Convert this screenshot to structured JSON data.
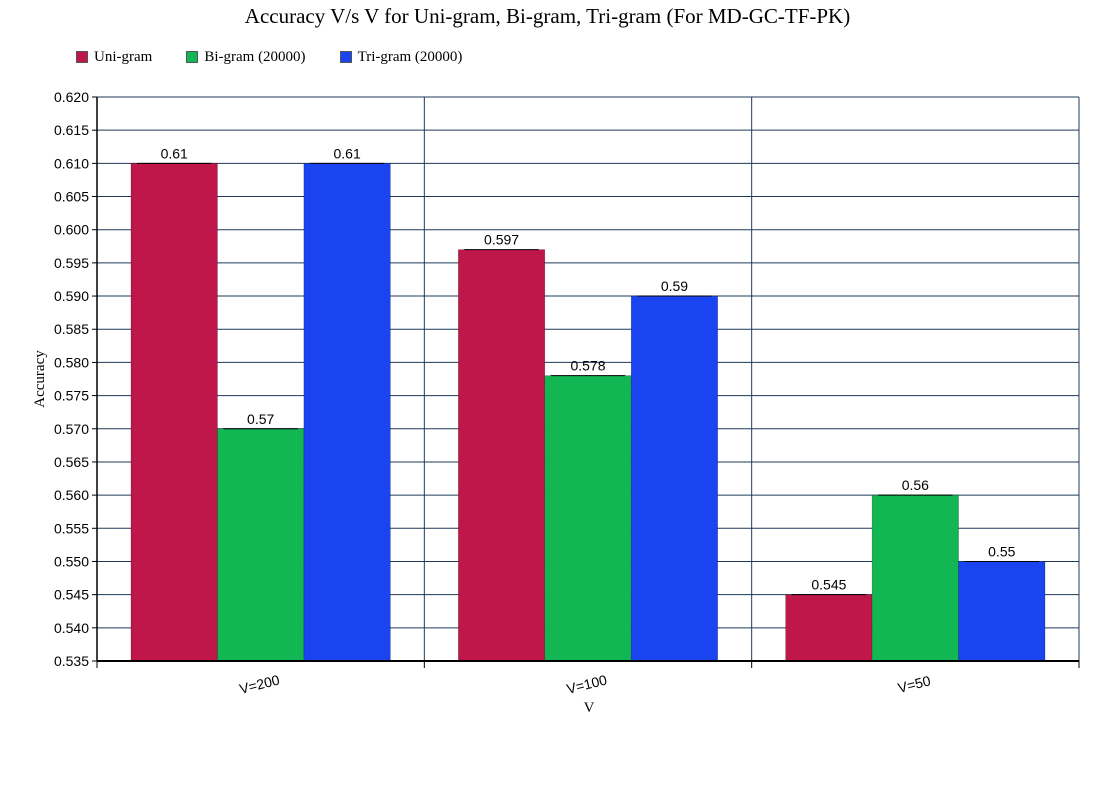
{
  "chart_data": {
    "type": "bar",
    "title": "Accuracy V/s V for Uni-gram, Bi-gram, Tri-gram (For MD-GC-TF-PK)",
    "xlabel": "V",
    "ylabel": "Accuracy",
    "categories": [
      "V=200",
      "V=100",
      "V=50"
    ],
    "series": [
      {
        "name": "Uni-gram",
        "color": "#c0174a",
        "values": [
          0.61,
          0.597,
          0.545
        ],
        "labels": [
          "0.61",
          "0.597",
          "0.545"
        ]
      },
      {
        "name": "Bi-gram (20000)",
        "color": "#12b652",
        "values": [
          0.57,
          0.578,
          0.56
        ],
        "labels": [
          "0.57",
          "0.578",
          "0.56"
        ]
      },
      {
        "name": "Tri-gram (20000)",
        "color": "#1a44f0",
        "values": [
          0.61,
          0.59,
          0.55
        ],
        "labels": [
          "0.61",
          "0.59",
          "0.55"
        ]
      }
    ],
    "ylim": [
      0.535,
      0.62
    ],
    "yticks": [
      "0.535",
      "0.540",
      "0.545",
      "0.550",
      "0.555",
      "0.560",
      "0.565",
      "0.570",
      "0.575",
      "0.580",
      "0.585",
      "0.590",
      "0.595",
      "0.600",
      "0.605",
      "0.610",
      "0.615",
      "0.620"
    ],
    "grid": true,
    "legend_position": "top-left"
  }
}
